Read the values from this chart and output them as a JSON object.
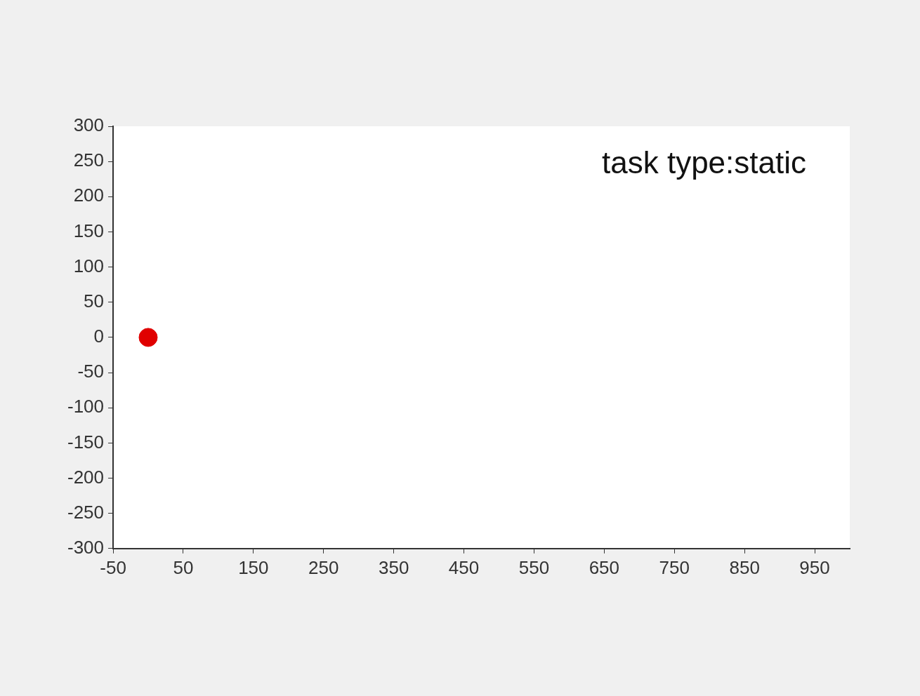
{
  "chart_data": {
    "type": "scatter",
    "x": [
      0
    ],
    "values": [
      0
    ],
    "color": "#e00000",
    "marker": "circle",
    "xlim": [
      -50,
      1000
    ],
    "xticks": [
      -50,
      50,
      150,
      250,
      350,
      450,
      550,
      650,
      750,
      850,
      950
    ],
    "ylim": [
      -300,
      300
    ],
    "yticks": [
      -300,
      -250,
      -200,
      -150,
      -100,
      -50,
      0,
      50,
      100,
      150,
      200,
      250,
      300
    ],
    "legend": false,
    "annotations": [
      "task type:static"
    ]
  }
}
